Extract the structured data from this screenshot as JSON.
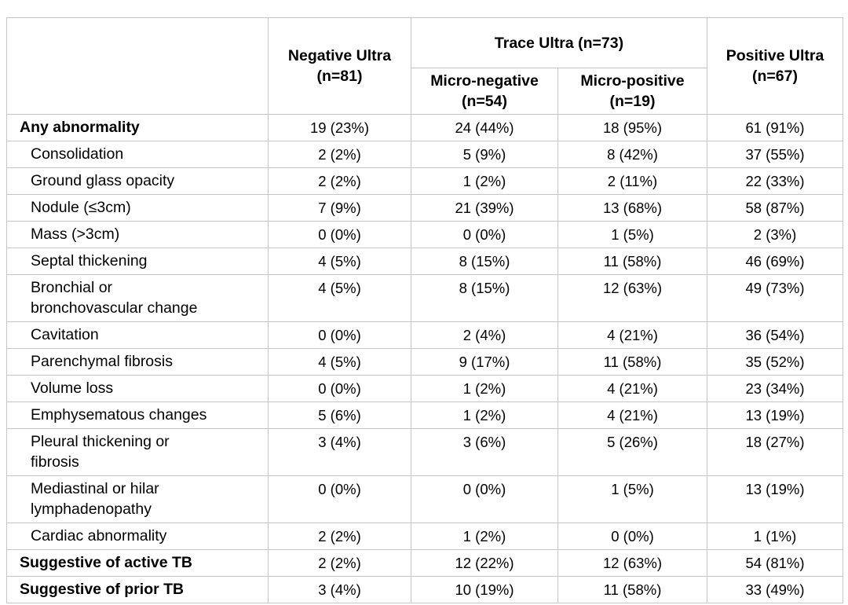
{
  "colors": {
    "grid": "#c6c6c6",
    "text": "#000000",
    "background": "#ffffff"
  },
  "chart_data": {
    "type": "table",
    "header": {
      "corner": "",
      "negative": "Negative Ultra\n(n=81)",
      "trace": "Trace Ultra (n=73)",
      "micro_negative": "Micro-negative\n(n=54)",
      "micro_positive": "Micro-positive\n(n=19)",
      "positive": "Positive Ultra\n(n=67)"
    },
    "column_order": [
      "Negative Ultra (n=81)",
      "Trace Ultra (n=73) / Micro-negative (n=54)",
      "Trace Ultra (n=73) / Micro-positive (n=19)",
      "Positive Ultra (n=67)"
    ],
    "rows": [
      {
        "label": "Any abnormality",
        "bold": true,
        "indent": false,
        "values": [
          "19 (23%)",
          "24 (44%)",
          "18 (95%)",
          "61 (91%)"
        ]
      },
      {
        "label": "Consolidation",
        "bold": false,
        "indent": true,
        "values": [
          "2 (2%)",
          "5 (9%)",
          "8 (42%)",
          "37 (55%)"
        ]
      },
      {
        "label": "Ground glass opacity",
        "bold": false,
        "indent": true,
        "values": [
          "2 (2%)",
          "1 (2%)",
          "2 (11%)",
          "22 (33%)"
        ]
      },
      {
        "label": "Nodule (≤3cm)",
        "bold": false,
        "indent": true,
        "values": [
          "7 (9%)",
          "21 (39%)",
          "13 (68%)",
          "58 (87%)"
        ]
      },
      {
        "label": "Mass (>3cm)",
        "bold": false,
        "indent": true,
        "values": [
          "0 (0%)",
          "0 (0%)",
          "1 (5%)",
          "2 (3%)"
        ]
      },
      {
        "label": "Septal thickening",
        "bold": false,
        "indent": true,
        "values": [
          "4 (5%)",
          "8 (15%)",
          "11 (58%)",
          "46 (69%)"
        ]
      },
      {
        "label": "Bronchial or\nbronchovascular change",
        "bold": false,
        "indent": true,
        "values": [
          "4 (5%)",
          "8 (15%)",
          "12 (63%)",
          "49 (73%)"
        ]
      },
      {
        "label": "Cavitation",
        "bold": false,
        "indent": true,
        "values": [
          "0 (0%)",
          "2 (4%)",
          "4 (21%)",
          "36 (54%)"
        ]
      },
      {
        "label": "Parenchymal fibrosis",
        "bold": false,
        "indent": true,
        "values": [
          "4 (5%)",
          "9 (17%)",
          "11 (58%)",
          "35 (52%)"
        ]
      },
      {
        "label": "Volume loss",
        "bold": false,
        "indent": true,
        "values": [
          "0 (0%)",
          "1 (2%)",
          "4 (21%)",
          "23 (34%)"
        ]
      },
      {
        "label": "Emphysematous changes",
        "bold": false,
        "indent": true,
        "values": [
          "5 (6%)",
          "1 (2%)",
          "4 (21%)",
          "13 (19%)"
        ]
      },
      {
        "label": "Pleural thickening or\nfibrosis",
        "bold": false,
        "indent": true,
        "values": [
          "3 (4%)",
          "3 (6%)",
          "5 (26%)",
          "18 (27%)"
        ]
      },
      {
        "label": "Mediastinal or hilar\nlymphadenopathy",
        "bold": false,
        "indent": true,
        "values": [
          "0 (0%)",
          "0 (0%)",
          "1 (5%)",
          "13 (19%)"
        ]
      },
      {
        "label": "Cardiac abnormality",
        "bold": false,
        "indent": true,
        "values": [
          "2 (2%)",
          "1 (2%)",
          "0 (0%)",
          "1 (1%)"
        ]
      },
      {
        "label": "Suggestive of active TB",
        "bold": true,
        "indent": false,
        "values": [
          "2 (2%)",
          "12 (22%)",
          "12 (63%)",
          "54 (81%)"
        ]
      },
      {
        "label": "Suggestive of prior TB",
        "bold": true,
        "indent": false,
        "values": [
          "3 (4%)",
          "10 (19%)",
          "11 (58%)",
          "33 (49%)"
        ]
      }
    ]
  }
}
